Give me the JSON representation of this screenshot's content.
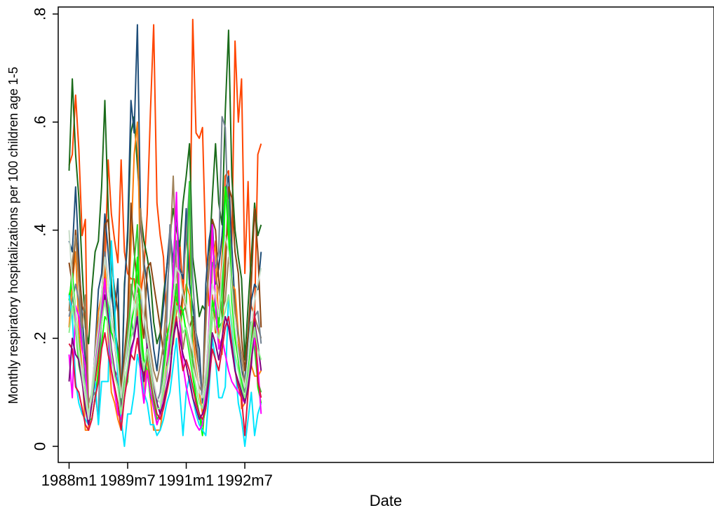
{
  "chart_data": {
    "type": "line",
    "xlabel": "Date",
    "ylabel": "Monthly respiratory hospitalizations per 100 children age 1-5",
    "x": [
      "1988-01",
      "1988-02",
      "1988-03",
      "1988-04",
      "1988-05",
      "1988-06",
      "1988-07",
      "1988-08",
      "1988-09",
      "1988-10",
      "1988-11",
      "1988-12",
      "1989-01",
      "1989-02",
      "1989-03",
      "1989-04",
      "1989-05",
      "1989-06",
      "1989-07",
      "1989-08",
      "1989-09",
      "1989-10",
      "1989-11",
      "1989-12",
      "1990-01",
      "1990-02",
      "1990-03",
      "1990-04",
      "1990-05",
      "1990-06",
      "1990-07",
      "1990-08",
      "1990-09",
      "1990-10",
      "1990-11",
      "1990-12",
      "1991-01",
      "1991-02",
      "1991-03",
      "1991-04",
      "1991-05",
      "1991-06",
      "1991-07",
      "1991-08",
      "1991-09",
      "1991-10",
      "1991-11",
      "1991-12",
      "1992-01",
      "1992-02",
      "1992-03",
      "1992-04",
      "1992-05",
      "1992-06",
      "1992-07",
      "1992-08",
      "1992-09",
      "1992-10",
      "1992-11",
      "1992-12"
    ],
    "x_ticks": [
      {
        "x": "1988-01",
        "label": "1988m1"
      },
      {
        "x": "1989-07",
        "label": "1989m7"
      },
      {
        "x": "1991-01",
        "label": "1991m1"
      },
      {
        "x": "1992-07",
        "label": "1992m7"
      }
    ],
    "ylim": [
      0,
      0.8
    ],
    "y_ticks": [
      {
        "value": 0,
        "label": "0"
      },
      {
        "value": 0.2,
        "label": ".2"
      },
      {
        "value": 0.4,
        "label": ".4"
      },
      {
        "value": 0.6,
        "label": ".6"
      },
      {
        "value": 0.8,
        "label": ".8"
      }
    ],
    "grid": false,
    "legend": "none",
    "series": [
      {
        "color": "#ff4500",
        "values": [
          0.52,
          0.54,
          0.65,
          0.55,
          0.39,
          0.42,
          0.03,
          0.08,
          0.12,
          0.16,
          0.24,
          0.32,
          0.53,
          0.43,
          0.38,
          0.34,
          0.53,
          0.36,
          0.32,
          0.31,
          0.31,
          0.24,
          0.28,
          0.33,
          0.43,
          0.62,
          0.78,
          0.45,
          0.39,
          0.35,
          0.22,
          0.17,
          0.19,
          0.25,
          0.38,
          0.28,
          0.41,
          0.3,
          0.79,
          0.58,
          0.57,
          0.59,
          0.36,
          0.26,
          0.28,
          0.21,
          0.24,
          0.35,
          0.5,
          0.51,
          0.37,
          0.75,
          0.6,
          0.68,
          0.32,
          0.49,
          0.26,
          0.24,
          0.54,
          0.56
        ]
      },
      {
        "color": "#1a6b1a",
        "values": [
          0.51,
          0.68,
          0.54,
          0.46,
          0.33,
          0.22,
          0.19,
          0.29,
          0.36,
          0.38,
          0.48,
          0.64,
          0.44,
          0.3,
          0.22,
          0.18,
          0.07,
          0.3,
          0.38,
          0.58,
          0.61,
          0.52,
          0.43,
          0.38,
          0.35,
          0.31,
          0.23,
          0.19,
          0.21,
          0.28,
          0.33,
          0.39,
          0.44,
          0.4,
          0.37,
          0.45,
          0.5,
          0.56,
          0.35,
          0.3,
          0.24,
          0.26,
          0.25,
          0.34,
          0.46,
          0.56,
          0.45,
          0.41,
          0.62,
          0.77,
          0.5,
          0.4,
          0.35,
          0.31,
          0.16,
          0.26,
          0.35,
          0.45,
          0.39,
          0.41
        ]
      },
      {
        "color": "#1f4e79",
        "values": [
          0.38,
          0.36,
          0.48,
          0.35,
          0.24,
          0.16,
          0.04,
          0.09,
          0.18,
          0.29,
          0.32,
          0.43,
          0.36,
          0.28,
          0.24,
          0.31,
          0.06,
          0.29,
          0.4,
          0.64,
          0.58,
          0.78,
          0.41,
          0.34,
          0.3,
          0.24,
          0.18,
          0.14,
          0.2,
          0.26,
          0.33,
          0.4,
          0.34,
          0.44,
          0.33,
          0.31,
          0.44,
          0.3,
          0.26,
          0.21,
          0.18,
          0.08,
          0.3,
          0.38,
          0.42,
          0.3,
          0.33,
          0.39,
          0.47,
          0.5,
          0.37,
          0.26,
          0.2,
          0.14,
          0.12,
          0.2,
          0.27,
          0.3,
          0.29,
          0.36
        ]
      },
      {
        "color": "#ff7f0e",
        "values": [
          0.22,
          0.3,
          0.36,
          0.22,
          0.14,
          0.03,
          0.03,
          0.1,
          0.17,
          0.25,
          0.28,
          0.36,
          0.2,
          0.1,
          0.08,
          0.05,
          0.03,
          0.14,
          0.22,
          0.37,
          0.54,
          0.6,
          0.3,
          0.08,
          0.17,
          0.09,
          0.03,
          0.03,
          0.03,
          0.08,
          0.16,
          0.2,
          0.28,
          0.23,
          0.2,
          0.27,
          0.3,
          0.28,
          0.21,
          0.15,
          0.1,
          0.06,
          0.09,
          0.17,
          0.33,
          0.38,
          0.2,
          0.17,
          0.38,
          0.4,
          0.3,
          0.29,
          0.21,
          0.07,
          0.08,
          0.14,
          0.15,
          0.13,
          0.13,
          0.14
        ]
      },
      {
        "color": "#8b4513",
        "values": [
          0.34,
          0.3,
          0.4,
          0.33,
          0.26,
          0.24,
          0.05,
          0.08,
          0.16,
          0.23,
          0.26,
          0.41,
          0.42,
          0.34,
          0.29,
          0.25,
          0.1,
          0.17,
          0.24,
          0.45,
          0.36,
          0.3,
          0.25,
          0.2,
          0.33,
          0.34,
          0.3,
          0.26,
          0.22,
          0.17,
          0.15,
          0.18,
          0.25,
          0.3,
          0.23,
          0.29,
          0.25,
          0.22,
          0.24,
          0.18,
          0.14,
          0.09,
          0.25,
          0.33,
          0.42,
          0.4,
          0.31,
          0.24,
          0.32,
          0.48,
          0.46,
          0.36,
          0.32,
          0.2,
          0.14,
          0.21,
          0.3,
          0.44,
          0.36,
          0.22
        ]
      },
      {
        "color": "#a0825a",
        "values": [
          0.25,
          0.34,
          0.39,
          0.3,
          0.22,
          0.28,
          0.08,
          0.1,
          0.16,
          0.2,
          0.27,
          0.3,
          0.22,
          0.16,
          0.14,
          0.13,
          0.1,
          0.15,
          0.21,
          0.3,
          0.27,
          0.29,
          0.44,
          0.32,
          0.22,
          0.18,
          0.14,
          0.12,
          0.15,
          0.19,
          0.28,
          0.36,
          0.5,
          0.33,
          0.24,
          0.18,
          0.22,
          0.19,
          0.16,
          0.13,
          0.11,
          0.1,
          0.22,
          0.35,
          0.38,
          0.31,
          0.29,
          0.25,
          0.27,
          0.35,
          0.31,
          0.25,
          0.21,
          0.17,
          0.11,
          0.16,
          0.21,
          0.24,
          0.22,
          0.2
        ]
      },
      {
        "color": "#708090",
        "values": [
          0.24,
          0.27,
          0.3,
          0.27,
          0.2,
          0.11,
          0.05,
          0.09,
          0.1,
          0.05,
          0.28,
          0.36,
          0.3,
          0.24,
          0.2,
          0.16,
          0.07,
          0.14,
          0.18,
          0.24,
          0.2,
          0.28,
          0.27,
          0.24,
          0.18,
          0.14,
          0.11,
          0.08,
          0.1,
          0.16,
          0.23,
          0.41,
          0.3,
          0.38,
          0.32,
          0.32,
          0.38,
          0.49,
          0.31,
          0.21,
          0.14,
          0.09,
          0.13,
          0.22,
          0.34,
          0.33,
          0.36,
          0.61,
          0.59,
          0.4,
          0.28,
          0.21,
          0.18,
          0.12,
          0.1,
          0.14,
          0.2,
          0.24,
          0.25,
          0.19
        ]
      },
      {
        "color": "#32cd32",
        "values": [
          0.28,
          0.3,
          0.22,
          0.15,
          0.12,
          0.1,
          0.04,
          0.08,
          0.14,
          0.2,
          0.24,
          0.3,
          0.26,
          0.21,
          0.19,
          0.14,
          0.04,
          0.14,
          0.2,
          0.27,
          0.34,
          0.41,
          0.2,
          0.13,
          0.17,
          0.12,
          0.08,
          0.05,
          0.06,
          0.14,
          0.2,
          0.19,
          0.22,
          0.3,
          0.23,
          0.25,
          0.26,
          0.49,
          0.14,
          0.09,
          0.06,
          0.04,
          0.07,
          0.16,
          0.24,
          0.28,
          0.22,
          0.23,
          0.48,
          0.45,
          0.3,
          0.21,
          0.16,
          0.1,
          0.08,
          0.15,
          0.23,
          0.18,
          0.12,
          0.1
        ]
      },
      {
        "color": "#00ff00",
        "values": [
          0.27,
          0.32,
          0.25,
          0.19,
          0.12,
          0.08,
          0.05,
          0.05,
          0.09,
          0.14,
          0.19,
          0.24,
          0.23,
          0.21,
          0.2,
          0.17,
          0.06,
          0.1,
          0.12,
          0.22,
          0.26,
          0.35,
          0.22,
          0.16,
          0.14,
          0.09,
          0.08,
          0.04,
          0.06,
          0.12,
          0.2,
          0.23,
          0.3,
          0.27,
          0.26,
          0.25,
          0.21,
          0.17,
          0.13,
          0.09,
          0.06,
          0.02,
          0.1,
          0.2,
          0.27,
          0.24,
          0.22,
          0.31,
          0.48,
          0.39,
          0.27,
          0.2,
          0.16,
          0.12,
          0.08,
          0.13,
          0.21,
          0.24,
          0.11,
          0.08
        ]
      },
      {
        "color": "#00e5ff",
        "values": [
          0.28,
          0.24,
          0.12,
          0.08,
          0.06,
          0.05,
          0.04,
          0.08,
          0.12,
          0.04,
          0.12,
          0.12,
          0.12,
          0.38,
          0.26,
          0.12,
          0.05,
          0.0,
          0.06,
          0.06,
          0.1,
          0.17,
          0.14,
          0.1,
          0.08,
          0.04,
          0.04,
          0.02,
          0.03,
          0.05,
          0.08,
          0.1,
          0.15,
          0.2,
          0.1,
          0.02,
          0.1,
          0.13,
          0.09,
          0.06,
          0.04,
          0.03,
          0.02,
          0.1,
          0.2,
          0.16,
          0.09,
          0.09,
          0.11,
          0.28,
          0.22,
          0.15,
          0.08,
          0.05,
          0.0,
          0.05,
          0.1,
          0.02,
          0.06,
          0.08
        ]
      },
      {
        "color": "#ff00ff",
        "values": [
          0.17,
          0.09,
          0.26,
          0.24,
          0.18,
          0.15,
          0.04,
          0.1,
          0.15,
          0.2,
          0.24,
          0.31,
          0.22,
          0.14,
          0.1,
          0.06,
          0.05,
          0.09,
          0.13,
          0.17,
          0.2,
          0.24,
          0.13,
          0.08,
          0.14,
          0.1,
          0.07,
          0.04,
          0.06,
          0.1,
          0.13,
          0.21,
          0.32,
          0.47,
          0.23,
          0.15,
          0.11,
          0.08,
          0.06,
          0.04,
          0.03,
          0.04,
          0.1,
          0.22,
          0.41,
          0.26,
          0.18,
          0.2,
          0.17,
          0.14,
          0.12,
          0.11,
          0.1,
          0.09,
          0.08,
          0.12,
          0.16,
          0.2,
          0.15,
          0.06
        ]
      },
      {
        "color": "#dc143c",
        "values": [
          0.19,
          0.18,
          0.11,
          0.1,
          0.07,
          0.04,
          0.03,
          0.05,
          0.09,
          0.12,
          0.18,
          0.21,
          0.17,
          0.14,
          0.11,
          0.08,
          0.03,
          0.09,
          0.13,
          0.17,
          0.16,
          0.2,
          0.15,
          0.13,
          0.18,
          0.13,
          0.09,
          0.06,
          0.05,
          0.07,
          0.1,
          0.13,
          0.21,
          0.24,
          0.18,
          0.14,
          0.16,
          0.14,
          0.11,
          0.08,
          0.06,
          0.05,
          0.07,
          0.12,
          0.18,
          0.16,
          0.14,
          0.18,
          0.22,
          0.24,
          0.19,
          0.14,
          0.11,
          0.09,
          0.02,
          0.1,
          0.16,
          0.25,
          0.12,
          0.09
        ]
      },
      {
        "color": "#800080",
        "values": [
          0.12,
          0.2,
          0.17,
          0.16,
          0.12,
          0.07,
          0.04,
          0.08,
          0.13,
          0.18,
          0.23,
          0.28,
          0.24,
          0.18,
          0.14,
          0.11,
          0.07,
          0.11,
          0.14,
          0.18,
          0.2,
          0.24,
          0.16,
          0.12,
          0.19,
          0.15,
          0.11,
          0.08,
          0.06,
          0.08,
          0.11,
          0.14,
          0.2,
          0.23,
          0.2,
          0.17,
          0.15,
          0.12,
          0.09,
          0.07,
          0.05,
          0.06,
          0.08,
          0.13,
          0.21,
          0.19,
          0.16,
          0.2,
          0.24,
          0.22,
          0.18,
          0.14,
          0.12,
          0.1,
          0.08,
          0.11,
          0.15,
          0.23,
          0.19,
          0.14
        ]
      },
      {
        "color": "#90ee90",
        "values": [
          0.21,
          0.26,
          0.22,
          0.17,
          0.14,
          0.11,
          0.06,
          0.09,
          0.14,
          0.19,
          0.23,
          0.27,
          0.22,
          0.17,
          0.13,
          0.11,
          0.06,
          0.11,
          0.15,
          0.2,
          0.22,
          0.28,
          0.18,
          0.14,
          0.18,
          0.14,
          0.1,
          0.07,
          0.07,
          0.1,
          0.14,
          0.17,
          0.22,
          0.26,
          0.24,
          0.21,
          0.22,
          0.18,
          0.14,
          0.11,
          0.08,
          0.07,
          0.11,
          0.17,
          0.25,
          0.22,
          0.2,
          0.23,
          0.25,
          0.28,
          0.23,
          0.17,
          0.14,
          0.11,
          0.09,
          0.13,
          0.18,
          0.22,
          0.18,
          0.16
        ]
      },
      {
        "color": "#c8dcc8",
        "values": [
          0.4,
          0.3,
          0.25,
          0.18,
          0.13,
          0.09,
          0.05,
          0.11,
          0.17,
          0.22,
          0.28,
          0.35,
          0.3,
          0.24,
          0.19,
          0.15,
          0.09,
          0.14,
          0.19,
          0.24,
          0.26,
          0.3,
          0.29,
          0.24,
          0.2,
          0.16,
          0.12,
          0.09,
          0.08,
          0.12,
          0.17,
          0.22,
          0.27,
          0.33,
          0.32,
          0.28,
          0.26,
          0.22,
          0.18,
          0.14,
          0.1,
          0.09,
          0.14,
          0.21,
          0.3,
          0.28,
          0.24,
          0.33,
          0.39,
          0.36,
          0.29,
          0.22,
          0.17,
          0.13,
          0.11,
          0.16,
          0.22,
          0.27,
          0.3,
          0.33
        ]
      }
    ]
  }
}
